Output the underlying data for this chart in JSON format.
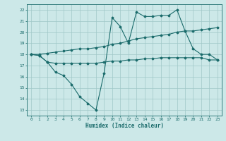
{
  "xlabel": "Humidex (Indice chaleur)",
  "xlim": [
    -0.5,
    23.5
  ],
  "ylim": [
    12.5,
    22.5
  ],
  "xticks": [
    0,
    1,
    2,
    3,
    4,
    5,
    6,
    7,
    8,
    9,
    10,
    11,
    12,
    13,
    14,
    15,
    16,
    17,
    18,
    19,
    20,
    21,
    22,
    23
  ],
  "yticks": [
    13,
    14,
    15,
    16,
    17,
    18,
    19,
    20,
    21,
    22
  ],
  "bg_color": "#cce8e8",
  "grid_color": "#a0c8c8",
  "line_color": "#1a6b6b",
  "series": [
    {
      "x": [
        0,
        1,
        2,
        3,
        4,
        5,
        6,
        7,
        8,
        9,
        10,
        11,
        12,
        13,
        14,
        15,
        16,
        17,
        18,
        19,
        20,
        21,
        22,
        23
      ],
      "y": [
        18.0,
        17.9,
        17.3,
        16.4,
        16.1,
        15.3,
        14.2,
        13.6,
        13.0,
        16.3,
        21.3,
        20.5,
        19.0,
        21.8,
        21.4,
        21.4,
        21.5,
        21.5,
        22.0,
        20.1,
        18.5,
        18.0,
        18.0,
        17.5
      ]
    },
    {
      "x": [
        0,
        1,
        2,
        3,
        4,
        5,
        6,
        7,
        8,
        9,
        10,
        11,
        12,
        13,
        14,
        15,
        16,
        17,
        18,
        19,
        20,
        21,
        22,
        23
      ],
      "y": [
        18.0,
        18.0,
        18.1,
        18.2,
        18.3,
        18.4,
        18.5,
        18.5,
        18.6,
        18.7,
        18.9,
        19.0,
        19.2,
        19.4,
        19.5,
        19.6,
        19.7,
        19.8,
        20.0,
        20.1,
        20.1,
        20.2,
        20.3,
        20.4
      ]
    },
    {
      "x": [
        0,
        1,
        2,
        3,
        4,
        5,
        6,
        7,
        8,
        9,
        10,
        11,
        12,
        13,
        14,
        15,
        16,
        17,
        18,
        19,
        20,
        21,
        22,
        23
      ],
      "y": [
        18.0,
        17.9,
        17.3,
        17.2,
        17.2,
        17.2,
        17.2,
        17.2,
        17.2,
        17.3,
        17.4,
        17.4,
        17.5,
        17.5,
        17.6,
        17.6,
        17.7,
        17.7,
        17.7,
        17.7,
        17.7,
        17.7,
        17.5,
        17.5
      ]
    }
  ]
}
